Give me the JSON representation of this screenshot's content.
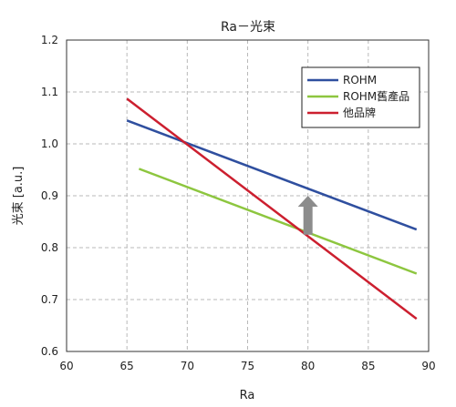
{
  "chart_data": {
    "type": "line",
    "title": "Ra－光束",
    "xlabel": "Ra",
    "ylabel": "光束 [a.u.]",
    "xlim": [
      60,
      90
    ],
    "ylim": [
      0.6,
      1.2
    ],
    "xticks": [
      60,
      65,
      70,
      75,
      80,
      85,
      90
    ],
    "yticks": [
      0.6,
      0.7,
      0.8,
      0.9,
      1.0,
      1.1,
      1.2
    ],
    "xtick_labels": [
      "60",
      "65",
      "70",
      "75",
      "80",
      "85",
      "90"
    ],
    "ytick_labels": [
      "0.6",
      "0.7",
      "0.8",
      "0.9",
      "1.0",
      "1.1",
      "1.2"
    ],
    "grid": true,
    "legend": {
      "placement": "top-right"
    },
    "series": [
      {
        "name": "ROHM",
        "color": "#2f4f9f",
        "x": [
          65,
          89
        ],
        "y": [
          1.045,
          0.835
        ]
      },
      {
        "name": "ROHM舊產品",
        "color": "#8dc63f",
        "x": [
          66,
          89
        ],
        "y": [
          0.952,
          0.75
        ]
      },
      {
        "name": "他品牌",
        "color": "#cc1f2f",
        "x": [
          65,
          89
        ],
        "y": [
          1.087,
          0.663
        ]
      }
    ],
    "annotations": [
      {
        "type": "arrow-up",
        "x": 80,
        "y_from": 0.825,
        "y_to": 0.9,
        "color": "#8c8c8c"
      }
    ]
  }
}
